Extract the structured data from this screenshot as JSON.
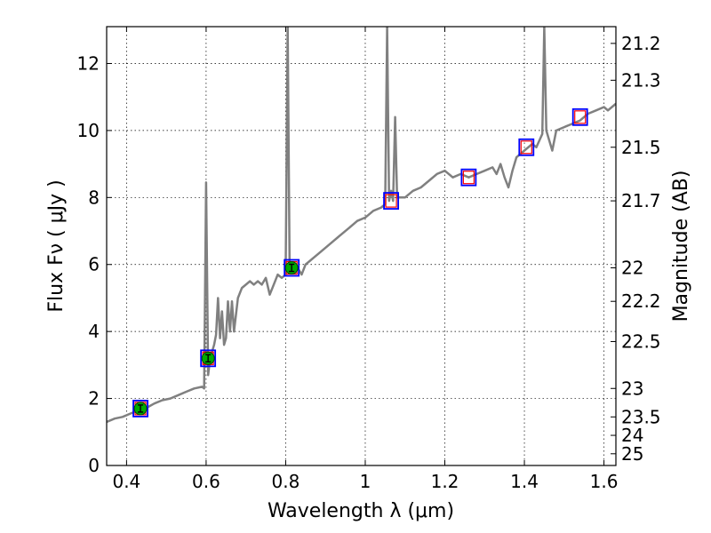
{
  "chart_data": {
    "type": "line",
    "title": "",
    "xlabel": "Wavelength  λ (μm)",
    "ylabel": "Flux  Fν  ( μJy )",
    "ylabel_right": "Magnitude (AB)",
    "xlim": [
      0.35,
      1.63
    ],
    "ylim": [
      0,
      13.1
    ],
    "grid": true,
    "x_ticks": [
      0.4,
      0.6,
      0.8,
      1.0,
      1.2,
      1.4,
      1.6
    ],
    "x_tick_labels": [
      "0.4",
      "0.6",
      "0.8",
      "1",
      "1.2",
      "1.4",
      "1.6"
    ],
    "y_ticks": [
      0,
      2,
      4,
      6,
      8,
      10,
      12
    ],
    "y_tick_labels": [
      "0",
      "2",
      "4",
      "6",
      "8",
      "10",
      "12"
    ],
    "mag_ticks": [
      {
        "label": "21.2",
        "flux": 12.6
      },
      {
        "label": "21.3",
        "flux": 11.5
      },
      {
        "label": "21.5",
        "flux": 9.5
      },
      {
        "label": "21.7",
        "flux": 7.9
      },
      {
        "label": "22",
        "flux": 5.9
      },
      {
        "label": "22.2",
        "flux": 4.9
      },
      {
        "label": "22.5",
        "flux": 3.7
      },
      {
        "label": "23",
        "flux": 2.3
      },
      {
        "label": "23.5",
        "flux": 1.45
      },
      {
        "label": "24",
        "flux": 0.9
      },
      {
        "label": "25",
        "flux": 0.35
      }
    ],
    "series": [
      {
        "color": "#808080",
        "points": [
          [
            0.35,
            1.3
          ],
          [
            0.37,
            1.4
          ],
          [
            0.39,
            1.45
          ],
          [
            0.41,
            1.55
          ],
          [
            0.43,
            1.65
          ],
          [
            0.45,
            1.72
          ],
          [
            0.47,
            1.85
          ],
          [
            0.49,
            1.95
          ],
          [
            0.51,
            2.0
          ],
          [
            0.53,
            2.1
          ],
          [
            0.55,
            2.2
          ],
          [
            0.57,
            2.3
          ],
          [
            0.59,
            2.35
          ],
          [
            0.595,
            2.3
          ],
          [
            0.6,
            8.45
          ],
          [
            0.605,
            2.7
          ],
          [
            0.61,
            3.2
          ],
          [
            0.62,
            3.6
          ],
          [
            0.625,
            3.9
          ],
          [
            0.63,
            5.0
          ],
          [
            0.635,
            3.8
          ],
          [
            0.64,
            4.6
          ],
          [
            0.645,
            3.6
          ],
          [
            0.65,
            3.8
          ],
          [
            0.655,
            4.9
          ],
          [
            0.66,
            4.0
          ],
          [
            0.665,
            4.9
          ],
          [
            0.67,
            4.0
          ],
          [
            0.68,
            5.0
          ],
          [
            0.69,
            5.3
          ],
          [
            0.7,
            5.4
          ],
          [
            0.71,
            5.5
          ],
          [
            0.72,
            5.4
          ],
          [
            0.73,
            5.5
          ],
          [
            0.74,
            5.4
          ],
          [
            0.75,
            5.6
          ],
          [
            0.76,
            5.1
          ],
          [
            0.77,
            5.4
          ],
          [
            0.78,
            5.7
          ],
          [
            0.79,
            5.6
          ],
          [
            0.8,
            5.7
          ],
          [
            0.805,
            13.1
          ],
          [
            0.81,
            5.8
          ],
          [
            0.82,
            5.8
          ],
          [
            0.83,
            5.9
          ],
          [
            0.84,
            5.7
          ],
          [
            0.85,
            6.0
          ],
          [
            0.86,
            6.1
          ],
          [
            0.87,
            6.2
          ],
          [
            0.88,
            6.3
          ],
          [
            0.9,
            6.5
          ],
          [
            0.92,
            6.7
          ],
          [
            0.94,
            6.9
          ],
          [
            0.96,
            7.1
          ],
          [
            0.98,
            7.3
          ],
          [
            1.0,
            7.4
          ],
          [
            1.02,
            7.6
          ],
          [
            1.04,
            7.7
          ],
          [
            1.05,
            7.8
          ],
          [
            1.055,
            13.1
          ],
          [
            1.06,
            7.9
          ],
          [
            1.065,
            8.2
          ],
          [
            1.07,
            7.9
          ],
          [
            1.075,
            10.4
          ],
          [
            1.08,
            8.0
          ],
          [
            1.1,
            8.0
          ],
          [
            1.12,
            8.2
          ],
          [
            1.14,
            8.3
          ],
          [
            1.16,
            8.5
          ],
          [
            1.18,
            8.7
          ],
          [
            1.2,
            8.8
          ],
          [
            1.22,
            8.6
          ],
          [
            1.24,
            8.7
          ],
          [
            1.26,
            8.6
          ],
          [
            1.28,
            8.7
          ],
          [
            1.3,
            8.8
          ],
          [
            1.32,
            8.9
          ],
          [
            1.33,
            8.7
          ],
          [
            1.34,
            9.0
          ],
          [
            1.35,
            8.6
          ],
          [
            1.36,
            8.3
          ],
          [
            1.37,
            8.8
          ],
          [
            1.38,
            9.2
          ],
          [
            1.4,
            9.4
          ],
          [
            1.42,
            9.6
          ],
          [
            1.43,
            9.5
          ],
          [
            1.445,
            9.9
          ],
          [
            1.45,
            13.1
          ],
          [
            1.455,
            10.0
          ],
          [
            1.46,
            9.8
          ],
          [
            1.47,
            9.4
          ],
          [
            1.48,
            10.0
          ],
          [
            1.5,
            10.1
          ],
          [
            1.52,
            10.2
          ],
          [
            1.54,
            10.3
          ],
          [
            1.56,
            10.5
          ],
          [
            1.58,
            10.6
          ],
          [
            1.6,
            10.7
          ],
          [
            1.61,
            10.6
          ],
          [
            1.62,
            10.7
          ],
          [
            1.63,
            10.8
          ]
        ]
      }
    ],
    "photometry": [
      {
        "x": 0.435,
        "y": 1.7
      },
      {
        "x": 0.605,
        "y": 3.2
      },
      {
        "x": 0.815,
        "y": 5.9
      }
    ],
    "model_boxes": [
      {
        "x": 0.435,
        "y": 1.7
      },
      {
        "x": 0.605,
        "y": 3.2
      },
      {
        "x": 0.815,
        "y": 5.9
      },
      {
        "x": 1.065,
        "y": 7.9
      },
      {
        "x": 1.26,
        "y": 8.6
      },
      {
        "x": 1.405,
        "y": 9.5
      },
      {
        "x": 1.54,
        "y": 10.4
      }
    ],
    "colors": {
      "spectrum": "#808080",
      "box_blue": "#0000ff",
      "box_red": "#ff0000",
      "photometry_fill": "#00aa00"
    }
  }
}
